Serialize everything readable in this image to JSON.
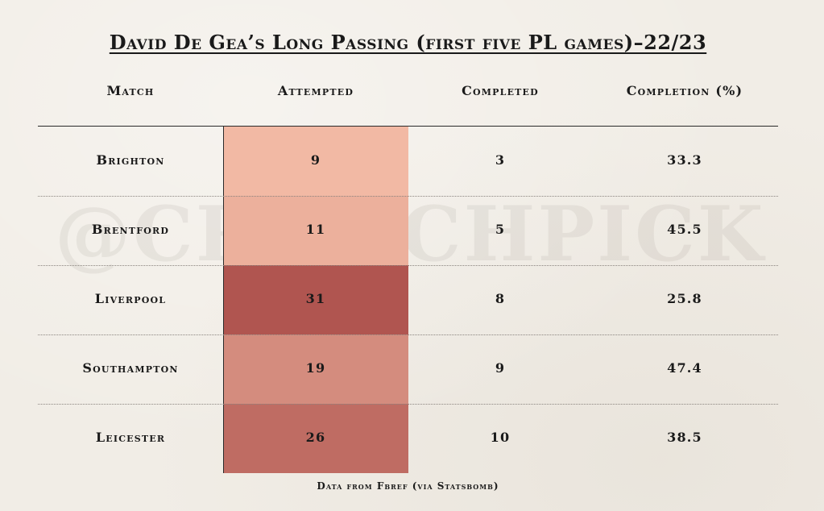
{
  "title": "David De Gea’s Long Passing (first five PL games)–22/23",
  "watermark": "@CRUNCHPICK",
  "source": "Data from Fbref (via Statsbomb)",
  "colors": {
    "background": "#f1ede6",
    "heat_low": "#f2b9a4",
    "heat_mid": "#d08577",
    "heat_high": "#b05550"
  },
  "chart_data": {
    "type": "table",
    "title": "David De Gea’s Long Passing (first five PL games)–22/23",
    "columns": [
      "Match",
      "Attempted",
      "Completed",
      "Completion (%)"
    ],
    "rows": [
      {
        "match": "Brighton",
        "attempted": "9",
        "completed": "3",
        "completion": "33.3"
      },
      {
        "match": "Brentford",
        "attempted": "11",
        "completed": "5",
        "completion": "45.5"
      },
      {
        "match": "Liverpool",
        "attempted": "31",
        "completed": "8",
        "completion": "25.8"
      },
      {
        "match": "Southampton",
        "attempted": "19",
        "completed": "9",
        "completion": "47.4"
      },
      {
        "match": "Leicester",
        "attempted": "26",
        "completed": "10",
        "completion": "38.5"
      }
    ],
    "heatmap_column": "Attempted"
  }
}
